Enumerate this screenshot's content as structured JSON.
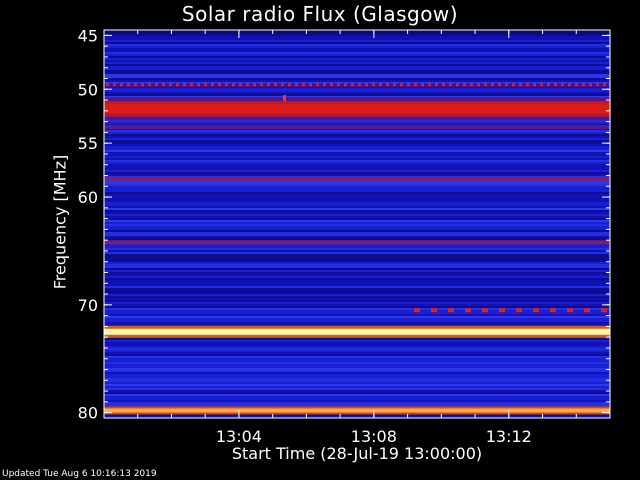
{
  "chart_data": {
    "type": "heatmap",
    "title": "Solar radio Flux (Glasgow)",
    "xlabel": "Start Time (28-Jul-19 13:00:00)",
    "ylabel": "Frequency [MHz]",
    "x_ticks": [
      "13:04",
      "13:08",
      "13:12"
    ],
    "x_tick_minutes": [
      4,
      8,
      12
    ],
    "x_range_minutes": [
      0,
      15
    ],
    "y_ticks": [
      45,
      50,
      55,
      60,
      70,
      80
    ],
    "y_range_mhz": [
      44.5,
      80.5
    ],
    "bands": [
      {
        "mhz": 49.6,
        "level": "red-dashed"
      },
      {
        "mhz": 51.8,
        "level": "red",
        "width_mhz": 1.4
      },
      {
        "mhz": 53.5,
        "level": "magenta-faint"
      },
      {
        "mhz": 58.3,
        "level": "magenta"
      },
      {
        "mhz": 64.2,
        "level": "magenta"
      },
      {
        "mhz": 70.5,
        "level": "red-dashed-partial"
      },
      {
        "mhz": 72.5,
        "level": "white-hot"
      },
      {
        "mhz": 79.8,
        "level": "orange-hot"
      }
    ],
    "colors": {
      "background": "#000000",
      "low": "#1a20d8",
      "mid": "#7a1a7a",
      "high": "#d01010",
      "hot": "#ffee80"
    }
  },
  "footer": "Updated Tue Aug  6 10:16:13 2019"
}
